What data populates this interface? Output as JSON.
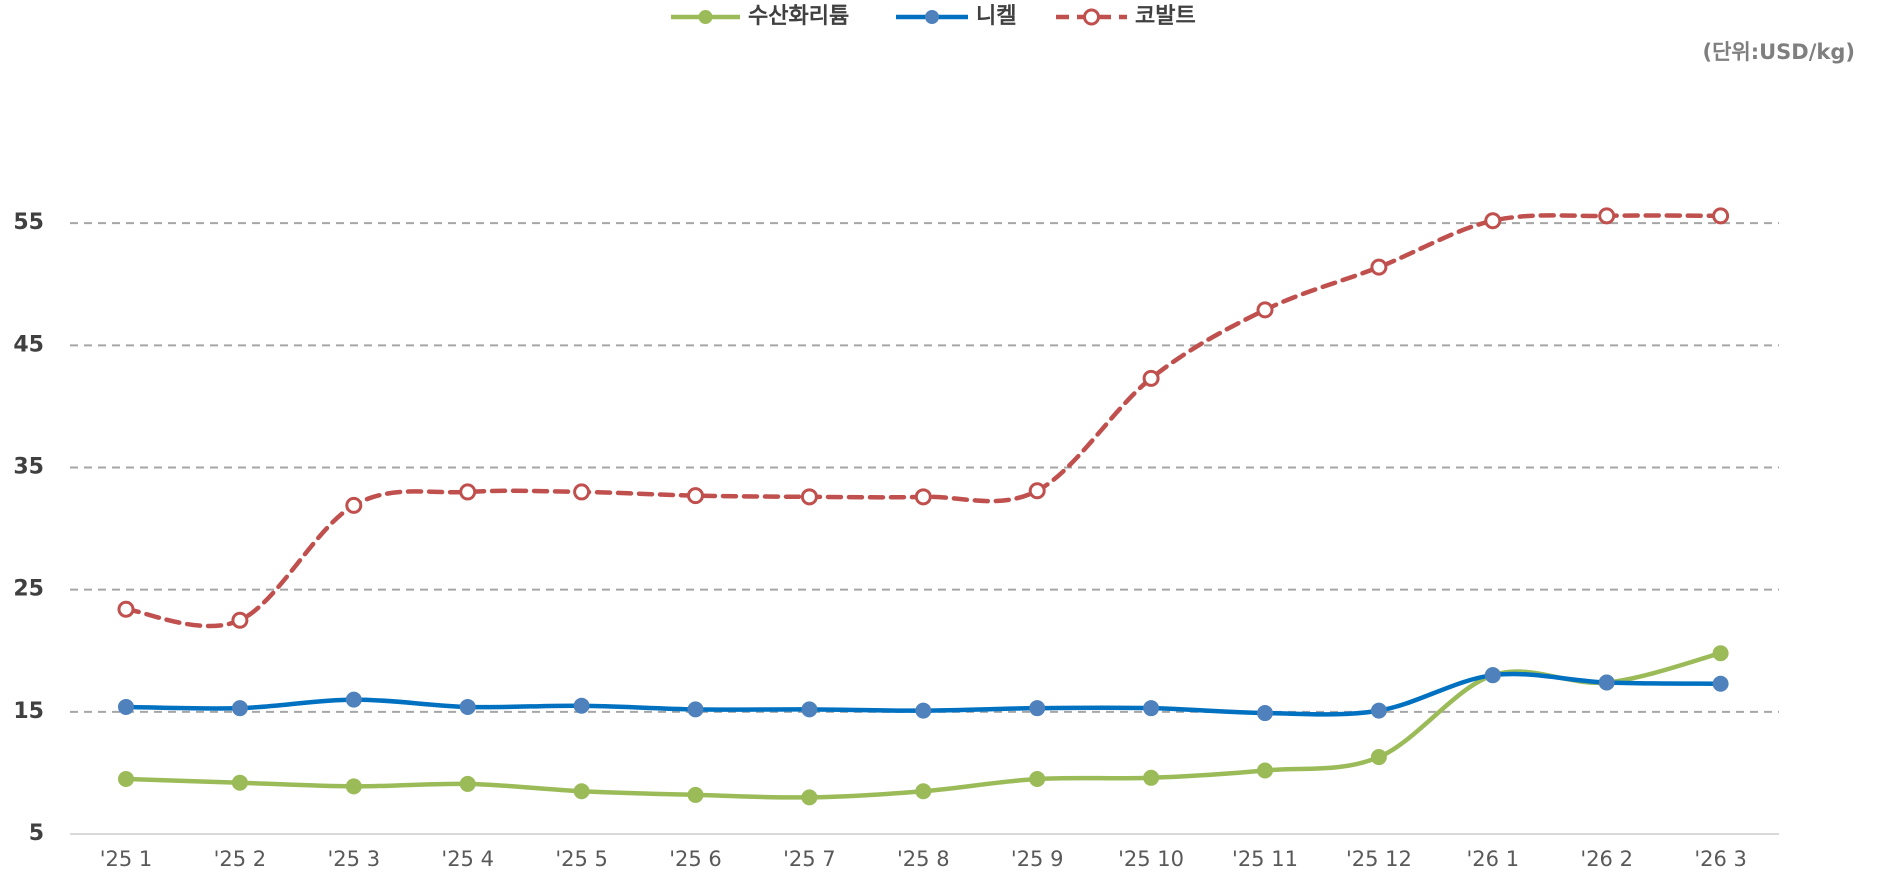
{
  "chart_data": {
    "type": "line",
    "unit_label": "(단위:USD/kg)",
    "categories": [
      "'25 1",
      "'25 2",
      "'25 3",
      "'25 4",
      "'25 5",
      "'25 6",
      "'25 7",
      "'25 8",
      "'25 9",
      "'25 10",
      "'25 11",
      "'25 12",
      "'26 1",
      "'26 2",
      "'26 3"
    ],
    "series": [
      {
        "name": "수산화리튬",
        "color": "#9bbb59",
        "marker_color": "#9bbb59",
        "dashed": false,
        "hollow": false,
        "values": [
          9.5,
          9.2,
          8.9,
          9.1,
          8.5,
          8.2,
          8.0,
          8.5,
          9.5,
          9.6,
          10.2,
          11.3,
          18.0,
          17.4,
          19.8
        ]
      },
      {
        "name": "니켈",
        "color": "#0070c0",
        "marker_color": "#4f81bd",
        "dashed": false,
        "hollow": false,
        "values": [
          15.4,
          15.3,
          16.0,
          15.4,
          15.5,
          15.2,
          15.2,
          15.1,
          15.3,
          15.3,
          14.9,
          15.1,
          18.0,
          17.4,
          17.3
        ]
      },
      {
        "name": "코발트",
        "color": "#c0504d",
        "marker_color": "#c0504d",
        "dashed": true,
        "hollow": true,
        "values": [
          23.4,
          22.5,
          31.9,
          33.0,
          33.0,
          32.7,
          32.6,
          32.6,
          33.1,
          42.3,
          47.9,
          51.4,
          55.2,
          55.6,
          55.6
        ]
      }
    ],
    "ylim": [
      5,
      65
    ],
    "yticks": [
      5,
      15,
      25,
      35,
      45,
      55
    ],
    "grid": true,
    "legend": "top"
  }
}
